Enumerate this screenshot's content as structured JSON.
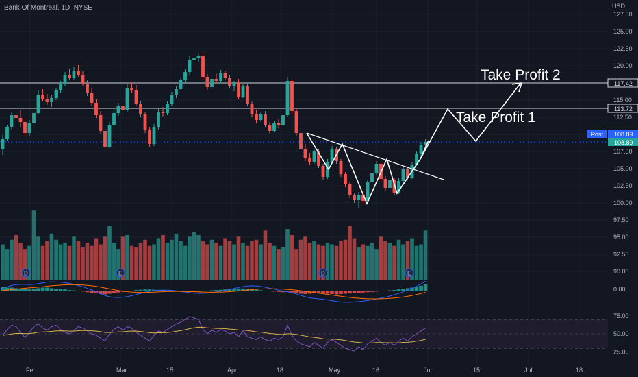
{
  "header": {
    "title": "Bank Of Montreal, 1D, NYSE",
    "currency": "USD"
  },
  "annotations": {
    "take_profit_1": "Take Profit 1",
    "take_profit_2": "Take Profit 2"
  },
  "price_badges": {
    "tp2_label": "117.42",
    "tp1_label": "113.72",
    "post_label": "Post",
    "last_label": "108.89",
    "post_value": "108.89"
  },
  "colors": {
    "up": "#26a69a",
    "down": "#ef5350",
    "background": "#131722",
    "grid": "#1e222d",
    "macd_line": "#2962ff",
    "signal_line": "#ff6d00",
    "rsi_line": "#7e57c2",
    "rsi_ma": "#d4b34a",
    "post_badge": "#2962ff"
  },
  "events": [
    "D",
    "E",
    "D",
    "E"
  ],
  "chart_data": [
    {
      "type": "candlestick",
      "title": "Bank Of Montreal, 1D, NYSE",
      "ylabel": "USD",
      "ylim": [
        88.5,
        127.5
      ],
      "price_ticks": [
        "127.50",
        "125.00",
        "122.50",
        "120.00",
        "117.50",
        "115.00",
        "112.50",
        "110.00",
        "107.50",
        "105.00",
        "102.50",
        "100.00",
        "97.50",
        "95.00",
        "92.50",
        "90.00"
      ],
      "x_ticks": [
        "Feb",
        "Mar",
        "15",
        "Apr",
        "18",
        "May",
        "16",
        "Jun",
        "15",
        "Jul",
        "18"
      ],
      "horizontal_levels": [
        117.42,
        113.72
      ],
      "last_price": 108.89,
      "ohlc": [
        [
          107.8,
          109.9,
          107.0,
          109.3
        ],
        [
          109.3,
          111.4,
          109.0,
          111.1
        ],
        [
          111.1,
          113.2,
          110.6,
          112.8
        ],
        [
          112.8,
          114.0,
          112.0,
          112.4
        ],
        [
          112.4,
          113.6,
          111.0,
          111.8
        ],
        [
          111.8,
          112.3,
          109.7,
          110.2
        ],
        [
          110.2,
          112.1,
          109.8,
          111.6
        ],
        [
          111.6,
          113.5,
          111.2,
          113.1
        ],
        [
          113.1,
          116.4,
          112.9,
          115.8
        ],
        [
          115.8,
          116.6,
          114.8,
          115.2
        ],
        [
          115.2,
          115.9,
          114.3,
          114.7
        ],
        [
          114.7,
          115.7,
          114.0,
          115.3
        ],
        [
          115.3,
          116.8,
          115.0,
          116.4
        ],
        [
          116.4,
          117.8,
          116.1,
          117.3
        ],
        [
          117.3,
          119.1,
          117.0,
          118.7
        ],
        [
          118.7,
          119.6,
          118.0,
          118.2
        ],
        [
          118.2,
          119.8,
          117.9,
          119.3
        ],
        [
          119.3,
          120.1,
          118.4,
          118.6
        ],
        [
          118.6,
          119.3,
          117.1,
          117.4
        ],
        [
          117.4,
          117.9,
          115.6,
          116.0
        ],
        [
          116.0,
          116.8,
          114.1,
          114.6
        ],
        [
          114.6,
          115.2,
          112.4,
          112.8
        ],
        [
          112.8,
          113.4,
          110.1,
          110.5
        ],
        [
          110.5,
          111.2,
          107.6,
          108.2
        ],
        [
          108.2,
          111.8,
          108.0,
          111.4
        ],
        [
          111.4,
          113.5,
          111.0,
          113.1
        ],
        [
          113.1,
          114.6,
          112.7,
          114.2
        ],
        [
          114.2,
          115.1,
          113.2,
          113.6
        ],
        [
          113.6,
          117.3,
          113.3,
          116.8
        ],
        [
          116.8,
          117.6,
          116.1,
          116.5
        ],
        [
          116.5,
          117.2,
          114.1,
          114.4
        ],
        [
          114.4,
          114.9,
          112.5,
          112.9
        ],
        [
          112.9,
          113.3,
          110.2,
          110.6
        ],
        [
          110.6,
          111.1,
          108.1,
          108.6
        ],
        [
          108.6,
          111.5,
          108.3,
          111.0
        ],
        [
          111.0,
          113.7,
          110.7,
          113.3
        ],
        [
          113.3,
          114.0,
          112.6,
          113.1
        ],
        [
          113.1,
          114.8,
          112.8,
          114.5
        ],
        [
          114.5,
          116.2,
          114.1,
          115.8
        ],
        [
          115.8,
          117.0,
          115.3,
          116.6
        ],
        [
          116.6,
          118.2,
          116.4,
          117.9
        ],
        [
          117.9,
          119.5,
          117.6,
          119.1
        ],
        [
          119.1,
          121.4,
          118.7,
          120.9
        ],
        [
          120.9,
          121.5,
          120.4,
          121.2
        ],
        [
          121.2,
          121.7,
          120.6,
          121.4
        ],
        [
          121.4,
          121.9,
          117.9,
          118.3
        ],
        [
          118.3,
          118.8,
          116.5,
          116.9
        ],
        [
          116.9,
          118.4,
          116.6,
          118.1
        ],
        [
          118.1,
          118.9,
          117.5,
          117.8
        ],
        [
          117.8,
          119.4,
          117.5,
          119.0
        ],
        [
          119.0,
          119.3,
          117.9,
          118.2
        ],
        [
          118.2,
          118.7,
          116.7,
          117.1
        ],
        [
          117.1,
          117.8,
          116.3,
          117.5
        ],
        [
          117.5,
          118.1,
          115.1,
          115.5
        ],
        [
          115.5,
          117.4,
          115.3,
          117.0
        ],
        [
          117.0,
          117.5,
          114.1,
          114.4
        ],
        [
          114.4,
          114.8,
          112.5,
          112.9
        ],
        [
          112.9,
          113.5,
          111.6,
          112.1
        ],
        [
          112.1,
          113.3,
          111.8,
          112.9
        ],
        [
          112.9,
          113.4,
          111.0,
          111.4
        ],
        [
          111.4,
          111.8,
          110.1,
          110.5
        ],
        [
          110.5,
          111.9,
          110.3,
          111.6
        ],
        [
          111.6,
          112.2,
          110.9,
          111.3
        ],
        [
          111.3,
          113.1,
          111.0,
          112.8
        ],
        [
          112.8,
          118.3,
          112.6,
          117.8
        ],
        [
          117.8,
          118.1,
          112.9,
          113.4
        ],
        [
          113.4,
          113.8,
          109.8,
          110.2
        ],
        [
          110.2,
          110.6,
          107.5,
          107.9
        ],
        [
          107.9,
          108.6,
          106.1,
          106.5
        ],
        [
          106.5,
          107.3,
          105.6,
          106.0
        ],
        [
          106.0,
          107.9,
          105.7,
          107.5
        ],
        [
          107.5,
          107.9,
          105.1,
          105.4
        ],
        [
          105.4,
          105.7,
          103.3,
          103.8
        ],
        [
          103.8,
          106.4,
          103.5,
          106.0
        ],
        [
          106.0,
          108.3,
          105.8,
          107.9
        ],
        [
          107.9,
          108.2,
          105.7,
          106.1
        ],
        [
          106.1,
          106.4,
          103.8,
          104.2
        ],
        [
          104.2,
          104.5,
          102.3,
          102.7
        ],
        [
          102.7,
          103.1,
          100.7,
          101.1
        ],
        [
          101.1,
          101.5,
          100.0,
          100.4
        ],
        [
          100.4,
          101.6,
          99.2,
          101.2
        ],
        [
          101.2,
          101.8,
          99.8,
          100.3
        ],
        [
          100.3,
          103.4,
          100.1,
          103.0
        ],
        [
          103.0,
          104.7,
          102.6,
          104.3
        ],
        [
          104.3,
          106.1,
          104.0,
          105.7
        ],
        [
          105.7,
          106.0,
          103.1,
          103.5
        ],
        [
          103.5,
          103.9,
          101.7,
          102.2
        ],
        [
          102.2,
          103.8,
          101.9,
          103.4
        ],
        [
          103.4,
          103.7,
          101.1,
          101.5
        ],
        [
          101.5,
          103.6,
          101.3,
          103.2
        ],
        [
          103.2,
          105.3,
          102.9,
          104.9
        ],
        [
          104.9,
          105.2,
          103.3,
          103.7
        ],
        [
          103.7,
          106.0,
          103.5,
          105.6
        ],
        [
          105.6,
          107.5,
          105.4,
          107.1
        ],
        [
          107.1,
          108.9,
          106.8,
          108.5
        ],
        [
          108.5,
          109.3,
          108.2,
          108.89
        ]
      ],
      "volume": [
        46,
        40,
        52,
        58,
        48,
        40,
        44,
        90,
        56,
        44,
        50,
        60,
        52,
        46,
        48,
        44,
        56,
        50,
        42,
        48,
        44,
        54,
        46,
        56,
        70,
        48,
        40,
        56,
        58,
        44,
        42,
        48,
        52,
        44,
        46,
        54,
        58,
        48,
        52,
        60,
        50,
        44,
        56,
        62,
        58,
        50,
        46,
        52,
        48,
        44,
        54,
        50,
        46,
        56,
        48,
        44,
        50,
        52,
        46,
        64,
        48,
        44,
        40,
        42,
        66,
        58,
        40,
        52,
        56,
        48,
        50,
        46,
        44,
        48,
        46,
        44,
        50,
        52,
        70,
        54,
        42,
        46,
        44,
        48,
        40,
        56,
        50,
        48,
        44,
        52,
        46,
        50,
        54,
        44,
        46,
        64
      ],
      "macd_histogram": [
        0.6,
        0.5,
        0.5,
        0.4,
        0.3,
        0.25,
        0.2,
        0.3,
        0.4,
        0.5,
        0.5,
        0.4,
        0.3,
        0.3,
        0.2,
        0.1,
        0.05,
        -0.05,
        -0.15,
        -0.25,
        -0.35,
        -0.45,
        -0.55,
        -0.6,
        -0.5,
        -0.4,
        -0.3,
        -0.2,
        -0.1,
        0.0,
        0.1,
        0.15,
        0.2,
        0.2,
        0.15,
        0.1,
        0.05,
        0.0,
        -0.05,
        -0.1,
        -0.15,
        -0.2,
        -0.25,
        -0.2,
        -0.15,
        -0.1,
        -0.05,
        0.05,
        0.1,
        0.15,
        0.2,
        0.25,
        0.3,
        0.35,
        0.35,
        0.3,
        0.25,
        0.15,
        0.05,
        -0.05,
        -0.1,
        -0.15,
        -0.2,
        -0.25,
        -0.2,
        -0.3,
        -0.4,
        -0.5,
        -0.55,
        -0.5,
        -0.45,
        -0.4,
        -0.45,
        -0.5,
        -0.55,
        -0.6,
        -0.55,
        -0.5,
        -0.45,
        -0.4,
        -0.35,
        -0.3,
        -0.25,
        -0.2,
        -0.15,
        -0.1,
        -0.05,
        0.05,
        0.1,
        0.2,
        0.3,
        0.4,
        0.5,
        0.6,
        0.8,
        1.0
      ],
      "macd_labels": [
        "0.00"
      ],
      "rsi": [
        48,
        56,
        62,
        60,
        52,
        45,
        52,
        60,
        64,
        58,
        55,
        60,
        62,
        56,
        52,
        50,
        55,
        60,
        58,
        54,
        50,
        48,
        44,
        40,
        50,
        56,
        60,
        55,
        60,
        58,
        52,
        48,
        44,
        40,
        48,
        54,
        52,
        56,
        60,
        64,
        66,
        70,
        74,
        72,
        70,
        56,
        50,
        55,
        52,
        56,
        54,
        50,
        52,
        46,
        54,
        46,
        44,
        42,
        46,
        42,
        40,
        44,
        42,
        46,
        62,
        48,
        40,
        36,
        34,
        32,
        38,
        34,
        30,
        38,
        42,
        38,
        34,
        30,
        28,
        26,
        32,
        28,
        36,
        40,
        44,
        38,
        34,
        38,
        34,
        40,
        44,
        40,
        46,
        50,
        54,
        58
      ],
      "rsi_ticks": [
        "75.00",
        "50.00",
        "25.00"
      ],
      "rsi_levels": [
        70,
        50,
        30
      ]
    }
  ]
}
